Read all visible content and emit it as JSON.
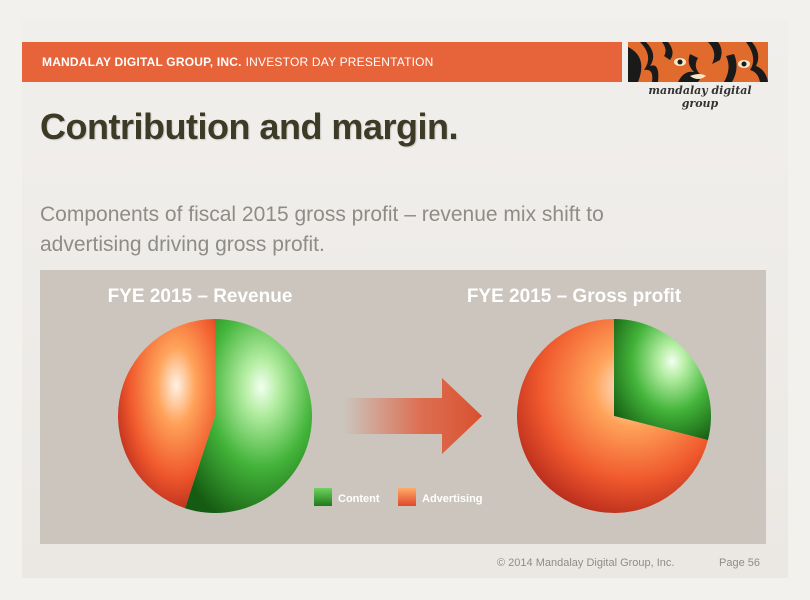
{
  "header": {
    "company": "MANDALAY DIGITAL GROUP, INC.",
    "presentation": "INVESTOR DAY PRESENTATION"
  },
  "logo": {
    "text": "mandalay digital group"
  },
  "title": "Contribution and margin.",
  "subtitle": "Components of fiscal 2015 gross profit – revenue mix shift to advertising driving gross profit.",
  "colors": {
    "content": "#3aa535",
    "advertising": "#e85a30",
    "arrow": "#e06040",
    "header": "#e7633a"
  },
  "chart_data": [
    {
      "type": "pie",
      "title": "FYE 2015 – Revenue",
      "labels": [
        "Content",
        "Advertising"
      ],
      "values": [
        55,
        45
      ],
      "start_angle_deg": 0
    },
    {
      "type": "pie",
      "title": "FYE 2015 – Gross profit",
      "labels": [
        "Content",
        "Advertising"
      ],
      "values": [
        29,
        71
      ],
      "start_angle_deg": 0
    }
  ],
  "legend": {
    "items": [
      "Content",
      "Advertising"
    ]
  },
  "footer": {
    "copyright": "© 2014 Mandalay Digital Group, Inc.",
    "page": "Page 56"
  }
}
